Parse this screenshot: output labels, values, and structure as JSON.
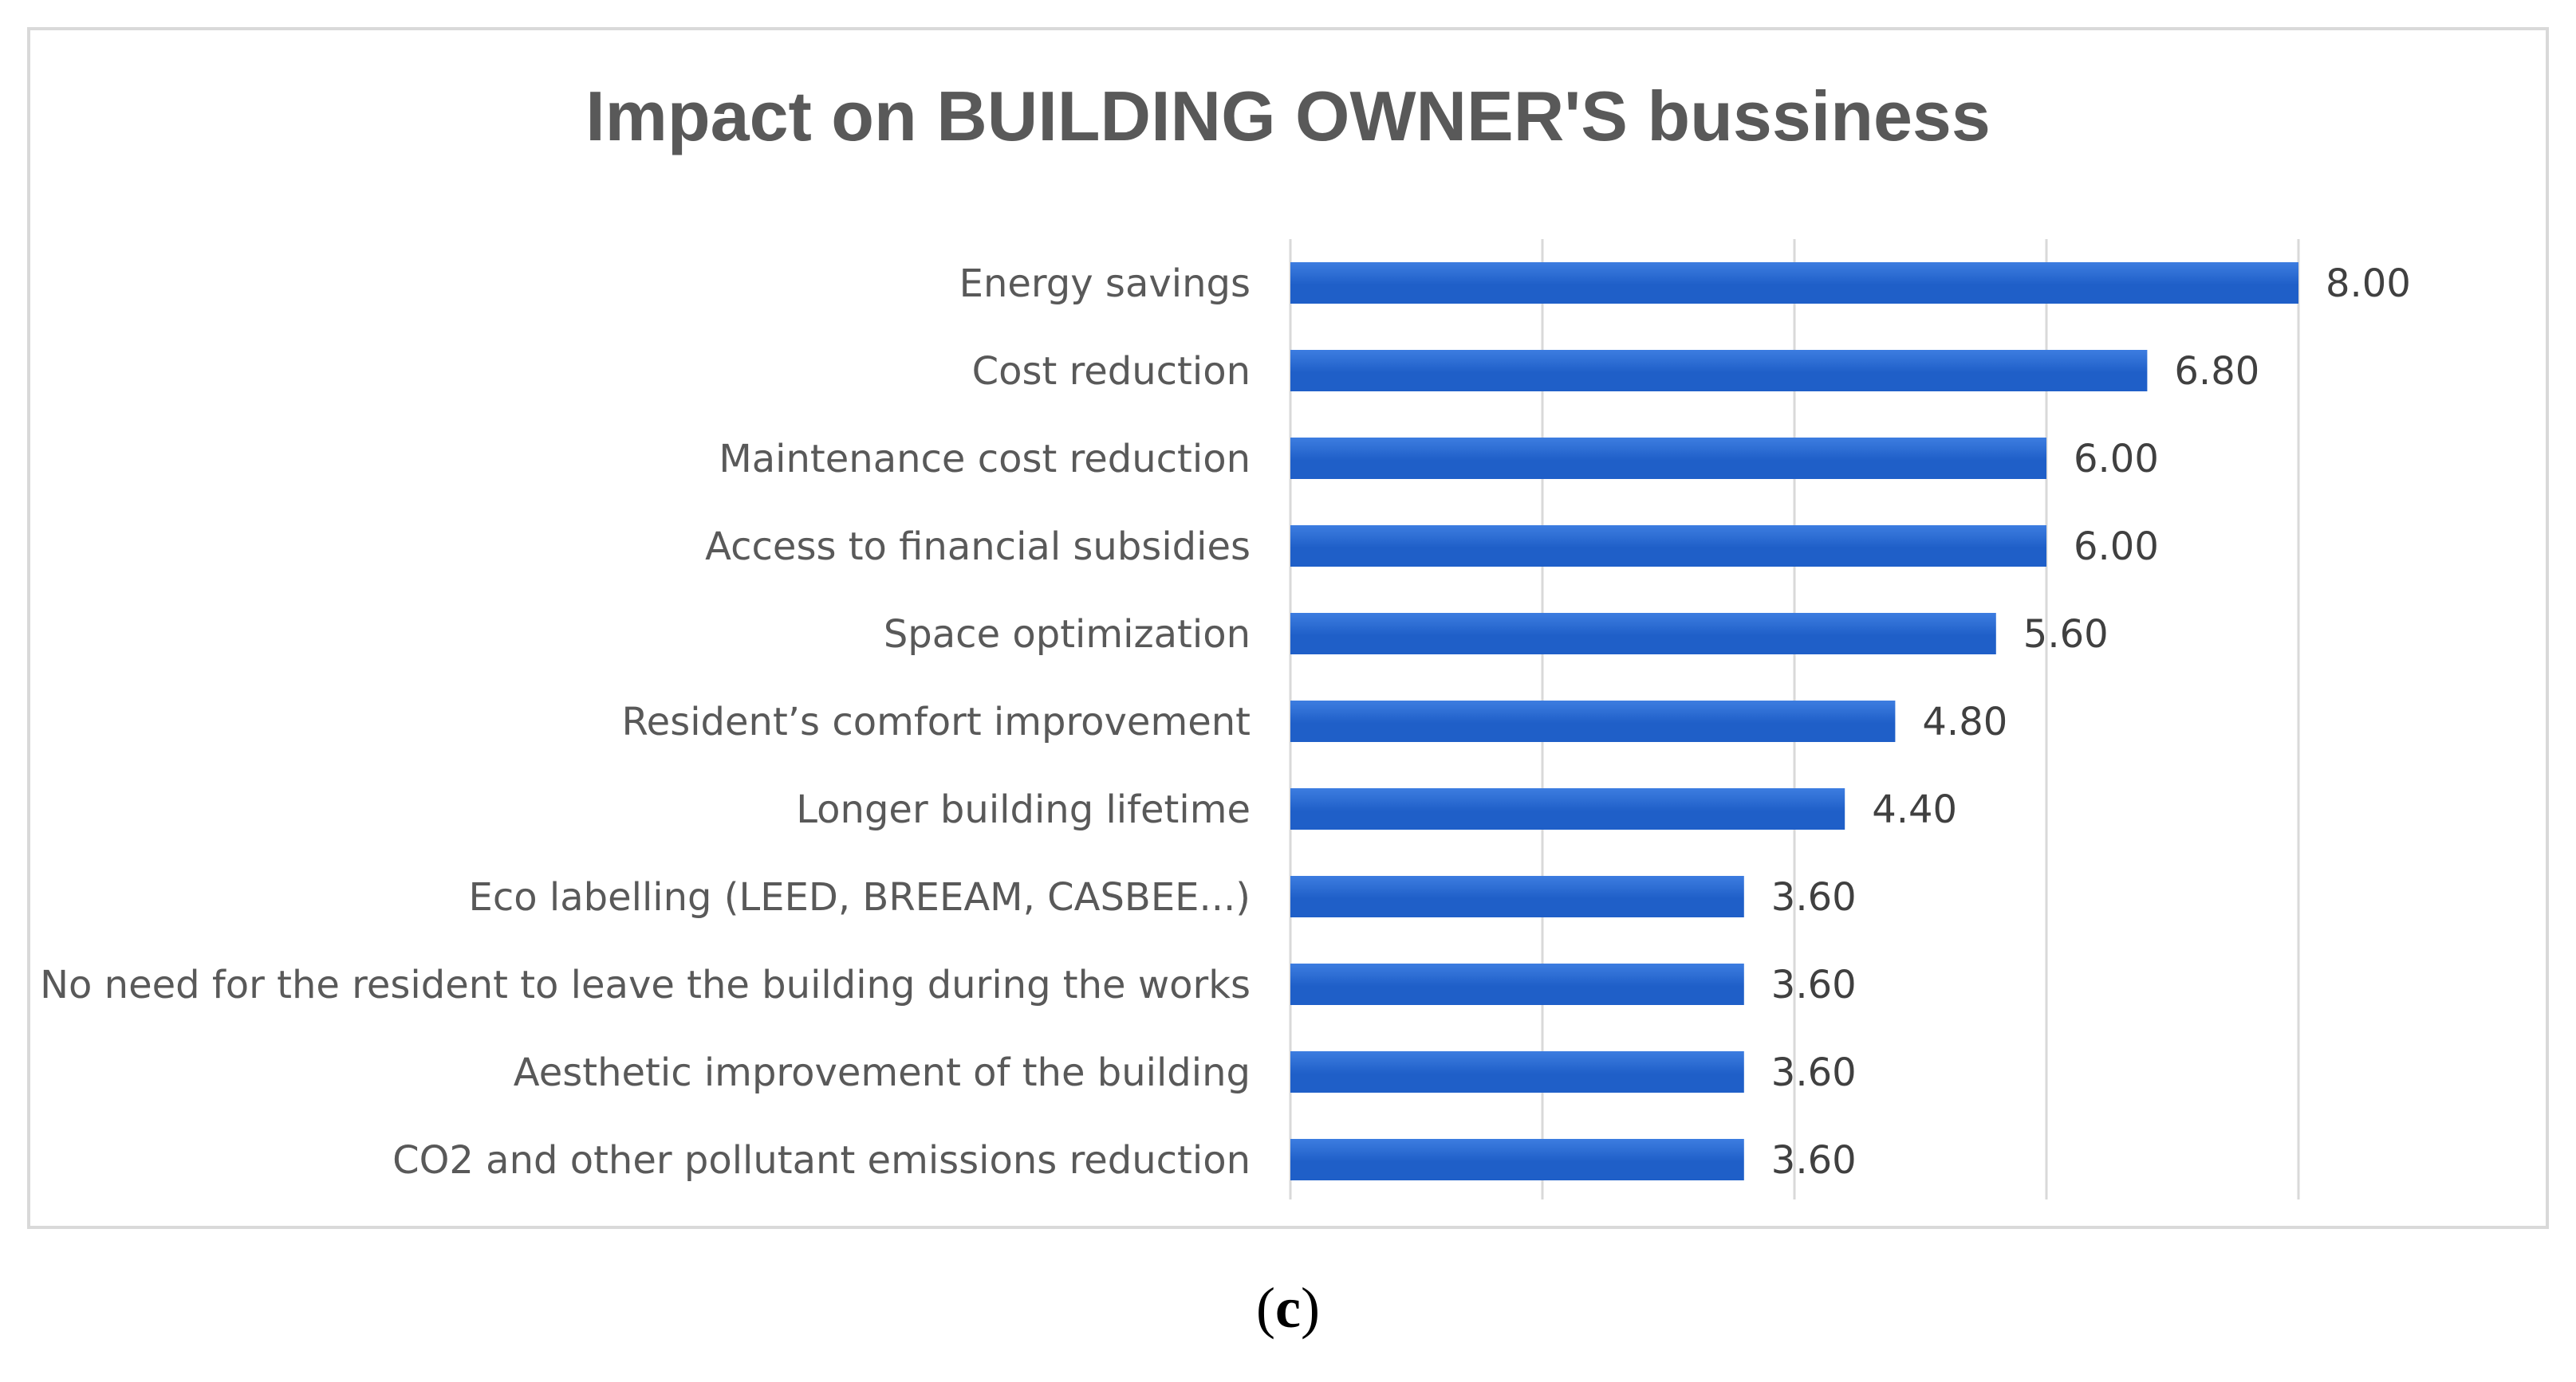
{
  "chart_data": {
    "type": "bar",
    "orientation": "horizontal",
    "title": "Impact on BUILDING OWNER'S bussiness",
    "xlabel": "",
    "ylabel": "",
    "xlim": [
      0,
      8
    ],
    "grid": true,
    "legend": "none",
    "categories": [
      "Energy savings",
      "Cost reduction",
      "Maintenance cost reduction",
      "Access to financial subsidies",
      "Space optimization",
      "Resident’s comfort improvement",
      "Longer building lifetime",
      "Eco labelling (LEED, BREEAM, CASBEE...)",
      "No need for the resident to leave the building during the works",
      "Aesthetic improvement of the building",
      "CO2 and other pollutant emissions reduction"
    ],
    "values": [
      8.0,
      6.8,
      6.0,
      6.0,
      5.6,
      4.8,
      4.4,
      3.6,
      3.6,
      3.6,
      3.6
    ],
    "value_labels": [
      "8.00",
      "6.80",
      "6.00",
      "6.00",
      "5.60",
      "4.80",
      "4.40",
      "3.60",
      "3.60",
      "3.60",
      "3.60"
    ],
    "bar_color": "#1f5fc8",
    "bar_color_light": "#3d7de0"
  },
  "caption": {
    "open": "(",
    "letter": "c",
    "close": ")"
  }
}
